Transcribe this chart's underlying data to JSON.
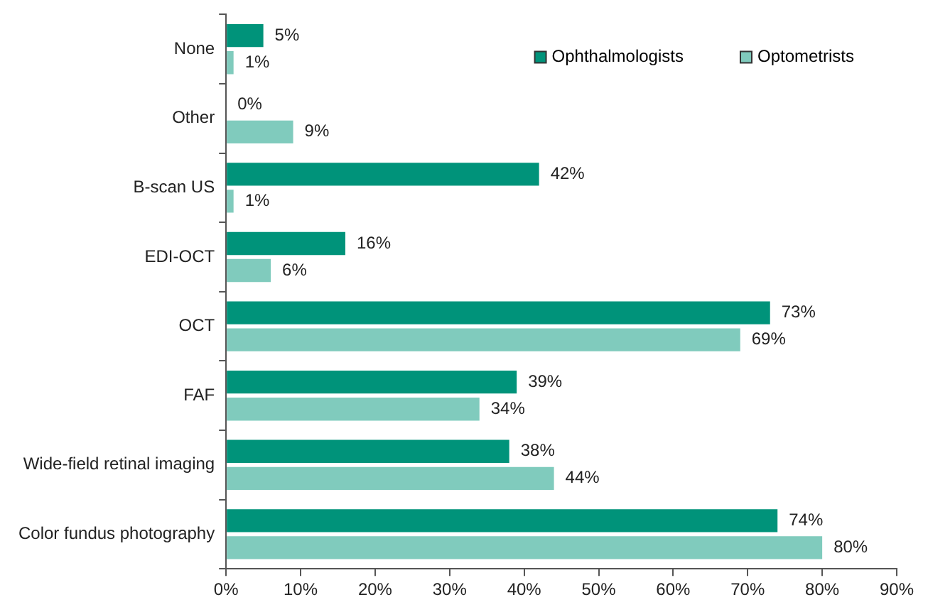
{
  "chart_data": {
    "type": "bar",
    "orientation": "horizontal",
    "categories": [
      "None",
      "Other",
      "B-scan US",
      "EDI-OCT",
      "OCT",
      "FAF",
      "Wide-field retinal imaging",
      "Color fundus photography"
    ],
    "series": [
      {
        "name": "Ophthalmologists",
        "color": "#00937a",
        "values": [
          5,
          0,
          42,
          16,
          73,
          39,
          38,
          74
        ],
        "value_labels": [
          "5%",
          "0%",
          "42%",
          "16%",
          "73%",
          "39%",
          "38%",
          "74%"
        ]
      },
      {
        "name": "Optometrists",
        "color": "#80cbbd",
        "values": [
          1,
          9,
          1,
          6,
          69,
          34,
          44,
          80
        ],
        "value_labels": [
          "1%",
          "9%",
          "1%",
          "6%",
          "69%",
          "34%",
          "44%",
          "80%"
        ]
      }
    ],
    "xlim": [
      0,
      90
    ],
    "xticks": [
      {
        "value": 0,
        "label": "0%"
      },
      {
        "value": 10,
        "label": "10%"
      },
      {
        "value": 20,
        "label": "20%"
      },
      {
        "value": 30,
        "label": "30%"
      },
      {
        "value": 40,
        "label": "40%"
      },
      {
        "value": 50,
        "label": "50%"
      },
      {
        "value": 60,
        "label": "60%"
      },
      {
        "value": 70,
        "label": "70%"
      },
      {
        "value": 80,
        "label": "80%"
      },
      {
        "value": 90,
        "label": "90%"
      }
    ],
    "grid": false,
    "legend": "top right"
  }
}
